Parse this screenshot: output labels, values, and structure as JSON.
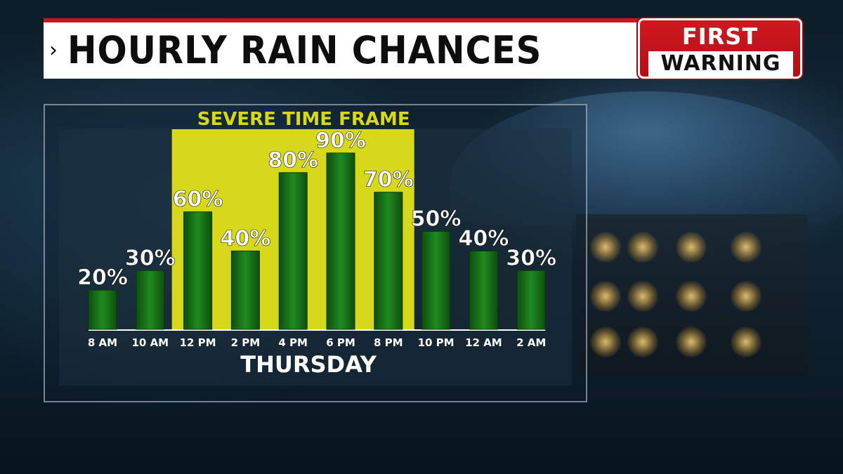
{
  "header": {
    "chevron": "›",
    "title": "HOURLY RAIN CHANCES"
  },
  "badge": {
    "line1": "FIRST",
    "line2": "WARNING"
  },
  "colors": {
    "bar": "#1d7d1d",
    "bar_dark": "#0d4f0d",
    "highlight": "#d8d81a",
    "header_red": "#c9141b"
  },
  "chart_data": {
    "type": "bar",
    "categories": [
      "8 AM",
      "10 AM",
      "12 PM",
      "2 PM",
      "4 PM",
      "6 PM",
      "8 PM",
      "10 PM",
      "12 AM",
      "2 AM"
    ],
    "values": [
      20,
      30,
      60,
      40,
      80,
      90,
      70,
      50,
      40,
      30
    ],
    "value_labels": [
      "20%",
      "30%",
      "60%",
      "40%",
      "80%",
      "90%",
      "70%",
      "50%",
      "40%",
      "30%"
    ],
    "xlabel": "THURSDAY",
    "ylabel": "",
    "ylim": [
      0,
      100
    ],
    "grid": false,
    "highlight_band": {
      "label": "SEVERE TIME FRAME",
      "from_category": "12 PM",
      "to_category": "8 PM"
    }
  }
}
